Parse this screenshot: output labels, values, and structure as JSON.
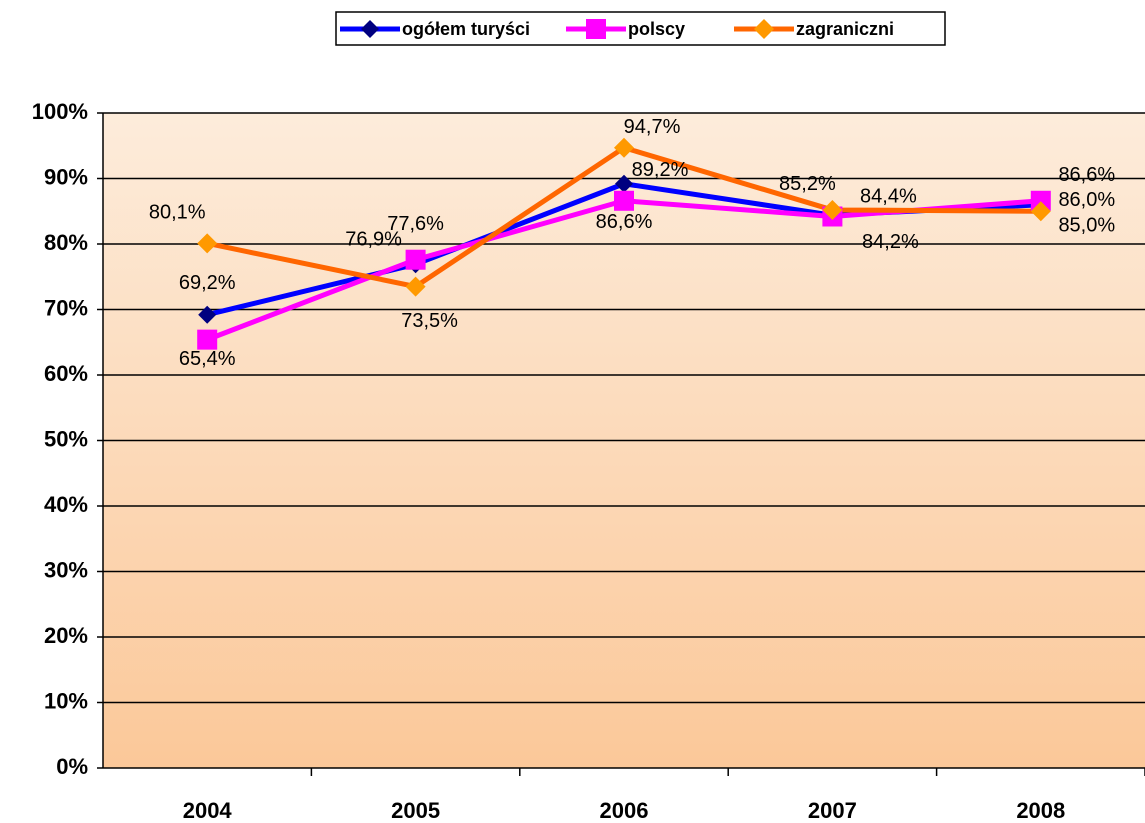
{
  "chart_data": {
    "type": "line",
    "categories": [
      "2004",
      "2005",
      "2006",
      "2007",
      "2008"
    ],
    "series": [
      {
        "name": "ogółem turyści",
        "color": "#0000ff",
        "marker_color": "#000080",
        "marker": "diamond",
        "values": [
          69.2,
          76.9,
          89.2,
          84.4,
          86.0
        ],
        "value_labels": [
          "69,2%",
          "76,9%",
          "89,2%",
          "84,4%",
          "86,0%"
        ]
      },
      {
        "name": "polscy",
        "color": "#ff00ff",
        "marker_color": "#ff00ff",
        "marker": "square",
        "values": [
          65.4,
          77.6,
          86.6,
          84.2,
          86.6
        ],
        "value_labels": [
          "65,4%",
          "77,6%",
          "86,6%",
          "84,2%",
          "86,6%"
        ]
      },
      {
        "name": "zagraniczni",
        "color": "#ff6600",
        "marker_color": "#ff9900",
        "marker": "diamond",
        "values": [
          80.1,
          73.5,
          94.7,
          85.2,
          85.0
        ],
        "value_labels": [
          "80,1%",
          "73,5%",
          "94,7%",
          "85,2%",
          "85,0%"
        ]
      }
    ],
    "ylim": [
      0,
      100
    ],
    "yticks": [
      {
        "value": 0,
        "label": "0%"
      },
      {
        "value": 10,
        "label": "10%"
      },
      {
        "value": 20,
        "label": "20%"
      },
      {
        "value": 30,
        "label": "30%"
      },
      {
        "value": 40,
        "label": "40%"
      },
      {
        "value": 50,
        "label": "50%"
      },
      {
        "value": 60,
        "label": "60%"
      },
      {
        "value": 70,
        "label": "70%"
      },
      {
        "value": 80,
        "label": "80%"
      },
      {
        "value": 90,
        "label": "90%"
      },
      {
        "value": 100,
        "label": "100%"
      }
    ],
    "grid": true,
    "legend": "top"
  }
}
